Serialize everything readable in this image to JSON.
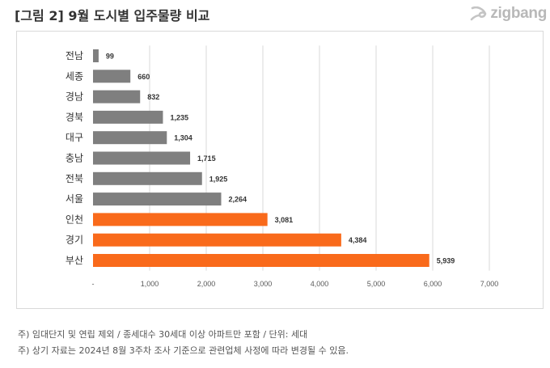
{
  "header": {
    "title": "[그림 2] 9월 도시별 입주물량 비교",
    "logo_text": "zigbang"
  },
  "colors": {
    "base": "#7f7f7f",
    "highlight": "#f96a1b",
    "grid": "#d9d9d9"
  },
  "chart_data": {
    "type": "bar",
    "orientation": "horizontal",
    "title": "",
    "xlabel": "",
    "ylabel": "",
    "categories": [
      "전남",
      "세종",
      "경남",
      "경북",
      "대구",
      "충남",
      "전북",
      "서울",
      "인천",
      "경기",
      "부산"
    ],
    "values": [
      99,
      660,
      832,
      1235,
      1304,
      1715,
      1925,
      2264,
      3081,
      4384,
      5939
    ],
    "value_labels": [
      "99",
      "660",
      "832",
      "1,235",
      "1,304",
      "1,715",
      "1,925",
      "2,264",
      "3,081",
      "4,384",
      "5,939"
    ],
    "highlight": [
      false,
      false,
      false,
      false,
      false,
      false,
      false,
      false,
      true,
      true,
      true
    ],
    "xlim": [
      0,
      7000
    ],
    "ticks": [
      0,
      1000,
      2000,
      3000,
      4000,
      5000,
      6000,
      7000
    ],
    "tick_labels": [
      "-",
      "1,000",
      "2,000",
      "3,000",
      "4,000",
      "5,000",
      "6,000",
      "7,000"
    ],
    "grid": true,
    "legend": "none"
  },
  "notes": [
    "주) 임대단지 및 연립 제외 / 종세대수 30세대 이상 아파트만 포함 / 단위: 세대",
    "주) 상기 자료는 2024년 8월 3주차 조사 기준으로 관련업체 사정에 따라 변경될 수 있음."
  ]
}
